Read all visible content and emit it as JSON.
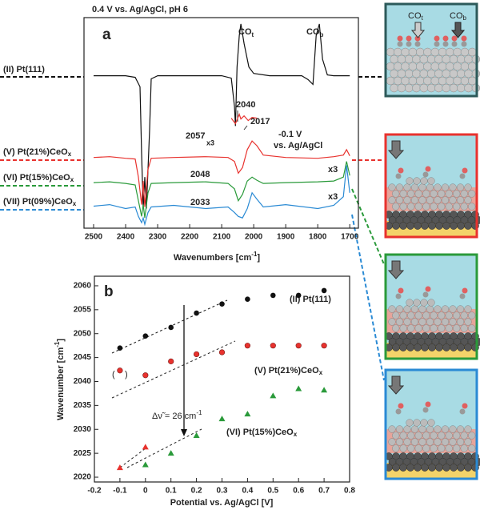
{
  "chart_data": [
    {
      "type": "line",
      "title": "0.4 V vs. Ag/AgCl, pH 6",
      "panel": "a",
      "xlabel": "Wavenumbers [cm",
      "xlabel_sup": "-1",
      "xlabel_end": "]",
      "xlim": [
        2530,
        1673
      ],
      "xticks": [
        2500,
        2400,
        2300,
        2200,
        2100,
        2000,
        1900,
        1800,
        1700
      ],
      "ylim": [
        -5,
        263
      ],
      "annotations": [
        "CO",
        "t",
        "CO",
        "b",
        "2057",
        "2040",
        "2017",
        "x3",
        "-0.1 V",
        "vs. Ag/AgCl",
        "2048",
        "x3",
        "2033",
        "x3"
      ],
      "series": [
        {
          "name": "(II) Pt(111)",
          "color": "#111111",
          "x": [
            2500,
            2400,
            2370,
            2355,
            2350,
            2345,
            2340,
            2335,
            2325,
            2320,
            2300,
            2200,
            2100,
            2070,
            2060,
            2057,
            2052,
            2045,
            2040,
            2030,
            2015,
            2000,
            1950,
            1850,
            1830,
            1815,
            1805,
            1795,
            1785,
            1770,
            1750,
            1720,
            1700
          ],
          "values": [
            189,
            189,
            187,
            175,
            90,
            20,
            60,
            20,
            120,
            185,
            189,
            189,
            189,
            186,
            150,
            125,
            200,
            240,
            255,
            230,
            200,
            192,
            189,
            189,
            184,
            178,
            240,
            255,
            210,
            190,
            189,
            189,
            189
          ]
        },
        {
          "name": "(V) Pt(21%)CeO",
          "name_sub": "x",
          "color": "#e8322e",
          "x": [
            2500,
            2450,
            2400,
            2370,
            2360,
            2350,
            2345,
            2340,
            2330,
            2320,
            2250,
            2150,
            2080,
            2060,
            2048,
            2035,
            2020,
            2005,
            1990,
            1970,
            1900,
            1800,
            1750,
            1720,
            1710,
            1700
          ],
          "values": [
            85,
            86,
            84,
            83,
            60,
            25,
            55,
            22,
            70,
            84,
            85,
            86,
            85,
            80,
            65,
            72,
            95,
            106,
            100,
            88,
            85,
            84,
            86,
            88,
            95,
            87
          ]
        },
        {
          "name": "(VI) Pt(15%)CeO",
          "name_sub": "x",
          "color": "#2a9a3a",
          "x": [
            2500,
            2450,
            2400,
            2370,
            2360,
            2350,
            2345,
            2340,
            2330,
            2320,
            2250,
            2150,
            2080,
            2060,
            2048,
            2035,
            2020,
            2005,
            1990,
            1970,
            1900,
            1800,
            1750,
            1720,
            1710,
            1700
          ],
          "values": [
            53,
            54,
            52,
            50,
            30,
            10,
            25,
            8,
            40,
            52,
            53,
            54,
            52,
            45,
            30,
            38,
            55,
            60,
            56,
            52,
            53,
            54,
            55,
            60,
            80,
            62
          ]
        },
        {
          "name": "(VII) Pt(09%)CeO",
          "name_sub": "x",
          "color": "#2a8ad4",
          "x": [
            2500,
            2450,
            2400,
            2370,
            2360,
            2350,
            2345,
            2340,
            2330,
            2320,
            2250,
            2150,
            2080,
            2060,
            2048,
            2035,
            2020,
            2005,
            1990,
            1970,
            1900,
            1800,
            1750,
            1720,
            1710,
            1700
          ],
          "values": [
            23,
            25,
            20,
            22,
            10,
            2,
            8,
            0,
            15,
            22,
            24,
            20,
            22,
            15,
            10,
            8,
            20,
            40,
            32,
            22,
            25,
            20,
            24,
            35,
            75,
            40
          ]
        },
        {
          "color": "#e8322e",
          "x": [
            2070,
            2057,
            2045,
            2040,
            2030,
            2017,
            2005,
            1990
          ],
          "values": [
            135,
            128,
            140,
            134,
            138,
            132,
            136,
            135
          ]
        }
      ]
    },
    {
      "type": "scatter",
      "panel": "b",
      "xlabel": "Potential vs. Ag/AgCl [V]",
      "ylabel": "Wavenumber [cm",
      "ylabel_sup": "-1",
      "ylabel_end": "]",
      "xlim": [
        -0.2,
        0.8
      ],
      "xticks": [
        -0.2,
        -0.1,
        0.0,
        0.1,
        0.2,
        0.3,
        0.4,
        0.5,
        0.6,
        0.7,
        0.8
      ],
      "ylim": [
        2019,
        2062
      ],
      "yticks": [
        2020,
        2025,
        2030,
        2035,
        2040,
        2045,
        2050,
        2055,
        2060
      ],
      "annotation": "Δν̃ = 26 cm",
      "annotation_sup": "-1",
      "paren_open": "(",
      "paren_close": ")",
      "series": [
        {
          "name": "(II) Pt(111)",
          "color": "#111111",
          "marker": "circle",
          "x": [
            -0.1,
            0.0,
            0.1,
            0.2,
            0.3,
            0.4,
            0.5,
            0.6,
            0.7
          ],
          "values": [
            2047,
            2049.5,
            2051.3,
            2054.3,
            2056.2,
            2057.2,
            2058,
            2058,
            2059
          ]
        },
        {
          "name": "(V) Pt(21%)CeO",
          "name_sub": "x",
          "color": "#e8322e",
          "marker": "circle",
          "x": [
            -0.1,
            0.0,
            0.1,
            0.2,
            0.3,
            0.4,
            0.5,
            0.6,
            0.7
          ],
          "values": [
            2042.3,
            2041.3,
            2044.2,
            2045.7,
            2046.1,
            2047.5,
            2047.5,
            2047.5,
            2047.5
          ]
        },
        {
          "name": "(VI) Pt(15%)CeO",
          "name_sub": "x",
          "color": "#2a9a3a",
          "marker": "triangle",
          "x": [
            0.0,
            0.1,
            0.2,
            0.3,
            0.4,
            0.5,
            0.6,
            0.7
          ],
          "values": [
            2022.6,
            2025,
            2028.7,
            2032.2,
            2033.2,
            2037,
            2038.5,
            2038.2
          ]
        },
        {
          "color": "#e8322e",
          "marker": "triangle",
          "x": [
            -0.1,
            0.0
          ],
          "values": [
            2022,
            2026.3
          ]
        }
      ]
    }
  ],
  "schematic": {
    "labels": [
      "CO",
      "t",
      "CO",
      "b"
    ]
  }
}
